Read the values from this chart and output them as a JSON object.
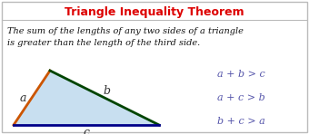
{
  "title": "Triangle Inequality Theorem",
  "title_color": "#dd0000",
  "body_text": "The sum of the lengths of any two sides of a triangle\nis greater than the length of the third side.",
  "equations": [
    "a + b > c",
    "a + c > b",
    "b + c > a"
  ],
  "triangle_fill": "#c8dff0",
  "side_a_color": "#cc5500",
  "side_b_color": "#004400",
  "side_c_color": "#000088",
  "label_a": "a",
  "label_b": "b",
  "label_c": "c",
  "bg_color": "#ffffff",
  "border_color": "#bbbbbb",
  "eq_color": "#5555aa",
  "body_text_color": "#111111",
  "title_fontsize": 9.0,
  "body_fontsize": 7.0,
  "eq_fontsize": 8.0
}
